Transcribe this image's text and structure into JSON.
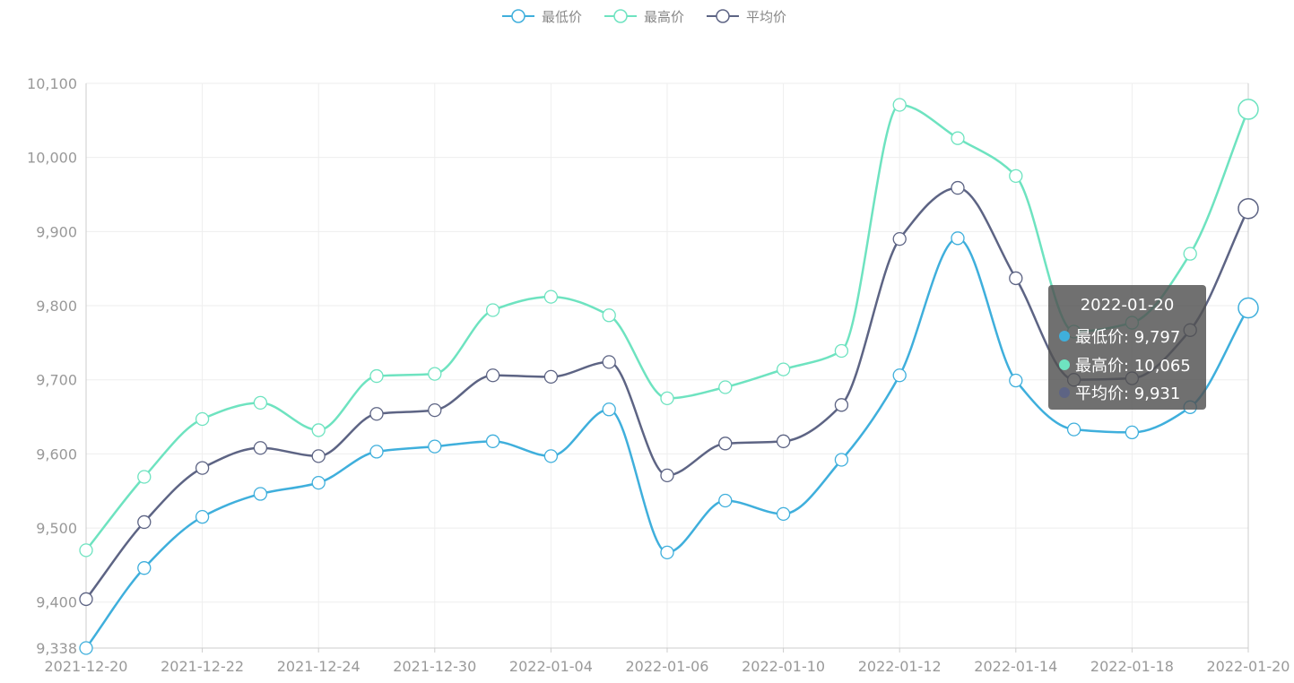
{
  "chart_data": {
    "type": "line",
    "title": "",
    "xlabel": "",
    "ylabel": "",
    "x_tick_labels": [
      "2021-12-20",
      "2021-12-22",
      "2021-12-24",
      "2021-12-30",
      "2022-01-04",
      "2022-01-06",
      "2022-01-10",
      "2022-01-12",
      "2022-01-14",
      "2022-01-18",
      "2022-01-20"
    ],
    "y_ticks": [
      9338,
      9400,
      9500,
      9600,
      9700,
      9800,
      9900,
      10000,
      10100
    ],
    "y_tick_labels": [
      "9,338",
      "9,400",
      "9,500",
      "9,600",
      "9,700",
      "9,800",
      "9,900",
      "10,000",
      "10,100"
    ],
    "ylim": [
      9338,
      10100
    ],
    "grid": true,
    "legend_position": "top-center",
    "smooth": true,
    "series": [
      {
        "name": "最低价",
        "color": "#3fafdc",
        "values": [
          9338,
          9446,
          9515,
          9546,
          9561,
          9603,
          9610,
          9617,
          9597,
          9660,
          9467,
          9537,
          9519,
          9592,
          9706,
          9891,
          9699,
          9633,
          9629,
          9663,
          9797
        ]
      },
      {
        "name": "最高价",
        "color": "#6ee3c0",
        "values": [
          9470,
          9569,
          9647,
          9669,
          9632,
          9705,
          9708,
          9794,
          9812,
          9787,
          9675,
          9690,
          9714,
          9739,
          10071,
          10026,
          9975,
          9765,
          9777,
          9870,
          10065
        ]
      },
      {
        "name": "平均价",
        "color": "#5d6484",
        "values": [
          9404,
          9508,
          9581,
          9608,
          9597,
          9654,
          9659,
          9706,
          9704,
          9724,
          9571,
          9614,
          9617,
          9666,
          9890,
          9959,
          9837,
          9700,
          9702,
          9767,
          9931
        ]
      }
    ]
  },
  "tooltip": {
    "title": "2022-01-20",
    "rows": [
      {
        "label": "最低价: 9,797",
        "color": "#3fafdc"
      },
      {
        "label": "最高价: 10,065",
        "color": "#6ee3c0"
      },
      {
        "label": "平均价: 9,931",
        "color": "#5d6484"
      }
    ]
  }
}
